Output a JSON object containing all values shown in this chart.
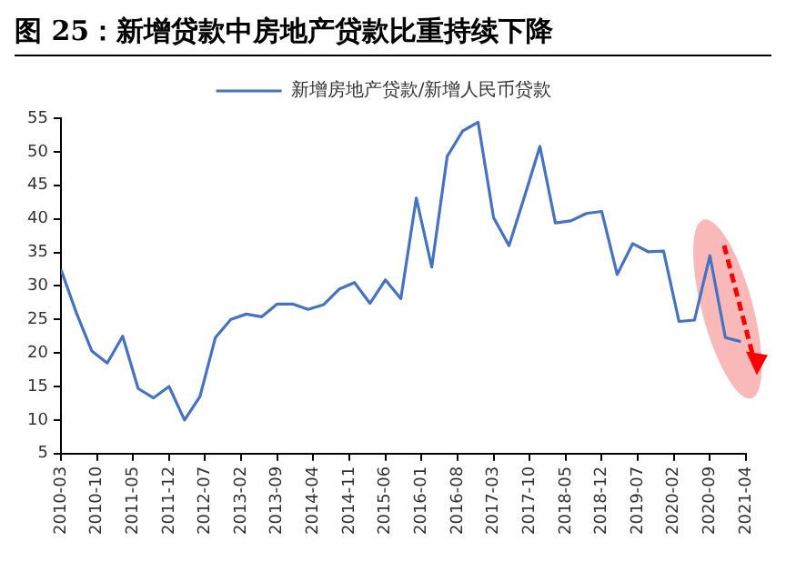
{
  "chart_data": {
    "type": "line",
    "title": "图 25：新增贷款中房地产贷款比重持续下降",
    "x": [
      "2010-03",
      "2010-06",
      "2010-09",
      "2010-12",
      "2011-03",
      "2011-06",
      "2011-09",
      "2011-12",
      "2012-03",
      "2012-06",
      "2012-09",
      "2012-12",
      "2013-03",
      "2013-06",
      "2013-09",
      "2013-12",
      "2014-03",
      "2014-06",
      "2014-09",
      "2014-12",
      "2015-03",
      "2015-06",
      "2015-09",
      "2015-12",
      "2016-03",
      "2016-06",
      "2016-09",
      "2016-12",
      "2017-03",
      "2017-06",
      "2017-09",
      "2017-12",
      "2018-03",
      "2018-06",
      "2018-09",
      "2018-12",
      "2019-03",
      "2019-06",
      "2019-09",
      "2019-12",
      "2020-03",
      "2020-06",
      "2020-09",
      "2020-12",
      "2021-03"
    ],
    "series": [
      {
        "name": "新增房地产贷款/新增人民币贷款",
        "color": "#4472c4",
        "values": [
          32.5,
          26,
          20.3,
          18.5,
          22.5,
          14.7,
          13.3,
          15,
          10,
          13.5,
          22.3,
          25,
          25.8,
          25.4,
          27.3,
          27.3,
          26.5,
          27.2,
          29.5,
          30.5,
          27.4,
          30.9,
          28.1,
          43.1,
          32.8,
          49.3,
          53.1,
          54.4,
          40.2,
          36,
          43.3,
          50.8,
          39.4,
          39.7,
          40.8,
          41.1,
          31.7,
          36.3,
          35.1,
          35.2,
          24.7,
          24.9,
          34.5,
          22.3,
          21.7
        ]
      }
    ],
    "xlim": [
      "2010-03",
      "2021-04"
    ],
    "xticks": [
      "2010-03",
      "2010-10",
      "2011-05",
      "2011-12",
      "2012-07",
      "2013-02",
      "2013-09",
      "2014-04",
      "2014-11",
      "2015-06",
      "2016-01",
      "2016-08",
      "2017-03",
      "2017-10",
      "2018-05",
      "2018-12",
      "2019-07",
      "2020-02",
      "2020-09",
      "2021-04"
    ],
    "ylim": [
      5,
      55
    ],
    "yticks": [
      5,
      10,
      15,
      20,
      25,
      30,
      35,
      40,
      45,
      50,
      55
    ],
    "grid": false,
    "legend": "top",
    "marker": "none",
    "line_style": "solid"
  }
}
